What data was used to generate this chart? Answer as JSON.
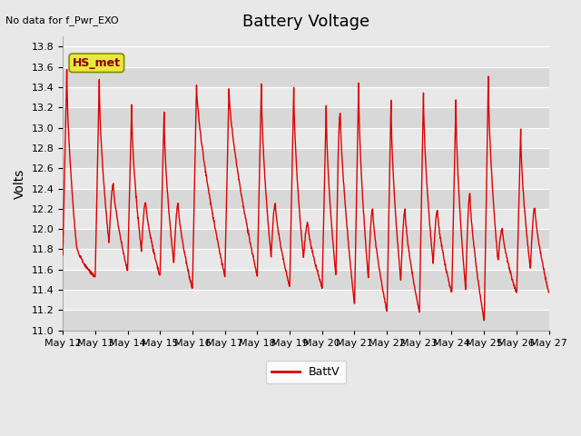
{
  "title": "Battery Voltage",
  "ylabel": "Volts",
  "top_left_text": "No data for f_Pwr_EXO",
  "legend_label": "BattV",
  "line_color": "#dd0000",
  "bg_color": "#e8e8e8",
  "grid_color": "#ffffff",
  "band_color_dark": "#d8d8d8",
  "band_color_light": "#e8e8e8",
  "ylim": [
    11.0,
    13.9
  ],
  "yticks": [
    11.0,
    11.2,
    11.4,
    11.6,
    11.8,
    12.0,
    12.2,
    12.4,
    12.6,
    12.8,
    13.0,
    13.2,
    13.4,
    13.6,
    13.8
  ],
  "xtick_labels": [
    "May 12",
    "May 13",
    "May 14",
    "May 15",
    "May 16",
    "May 17",
    "May 18",
    "May 19",
    "May 20",
    "May 21",
    "May 22",
    "May 23",
    "May 24",
    "May 25",
    "May 26",
    "May 27"
  ],
  "hs_met_box_color": "#e8e840",
  "hs_met_text": "HS_met",
  "title_fontsize": 13,
  "axis_label_fontsize": 10,
  "tick_fontsize": 8,
  "n_days": 15,
  "start_label": "May 12",
  "peaks": [
    13.57,
    13.47,
    13.22,
    13.15,
    13.42,
    13.38,
    13.45,
    13.4,
    13.22,
    13.44,
    13.27,
    13.35,
    13.28,
    13.5,
    12.98,
    13.0
  ],
  "troughs": [
    11.52,
    11.58,
    11.53,
    11.4,
    11.53,
    11.53,
    11.42,
    11.42,
    11.24,
    11.18,
    11.18,
    11.36,
    11.08,
    11.36,
    11.36,
    11.36
  ],
  "mid_highs": [
    11.73,
    12.45,
    12.27,
    12.25,
    -1,
    -1,
    12.25,
    12.06,
    13.15,
    12.2,
    12.18,
    12.18,
    12.35,
    12.0,
    12.22,
    -1
  ],
  "line_width": 1.0
}
